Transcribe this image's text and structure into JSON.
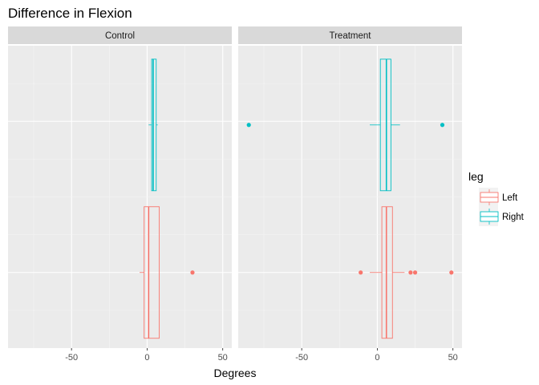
{
  "chart_data": {
    "type": "boxplot",
    "title": "Difference in Flexion",
    "xlabel": "Degrees",
    "ylabel": "",
    "xlim": [
      -92,
      56
    ],
    "x_ticks": [
      -50,
      0,
      50
    ],
    "x_tick_labels": [
      "-50",
      "0",
      "50"
    ],
    "grid": true,
    "legend": {
      "title": "leg",
      "position": "right",
      "entries": [
        {
          "name": "Left",
          "color": "#F8766D"
        },
        {
          "name": "Right",
          "color": "#00BFC4"
        }
      ]
    },
    "panels": [
      {
        "name": "Control",
        "boxes": [
          {
            "series": "Right",
            "color": "#00BFC4",
            "group": "upper",
            "whisker_low": 1,
            "q1": 3,
            "median": 4,
            "q3": 6,
            "whisker_high": 7,
            "outliers": []
          },
          {
            "series": "Left",
            "color": "#F8766D",
            "group": "lower",
            "whisker_low": -5,
            "q1": -2,
            "median": 1,
            "q3": 8,
            "whisker_high": 8,
            "outliers": [
              30
            ]
          }
        ]
      },
      {
        "name": "Treatment",
        "boxes": [
          {
            "series": "Right",
            "color": "#00BFC4",
            "group": "upper",
            "whisker_low": -5,
            "q1": 2,
            "median": 6,
            "q3": 9,
            "whisker_high": 15,
            "outliers": [
              -85,
              43
            ]
          },
          {
            "series": "Left",
            "color": "#F8766D",
            "group": "lower",
            "whisker_low": -5,
            "q1": 3,
            "median": 6,
            "q3": 10,
            "whisker_high": 18,
            "outliers": [
              -11,
              22,
              25,
              49
            ]
          }
        ]
      }
    ]
  }
}
